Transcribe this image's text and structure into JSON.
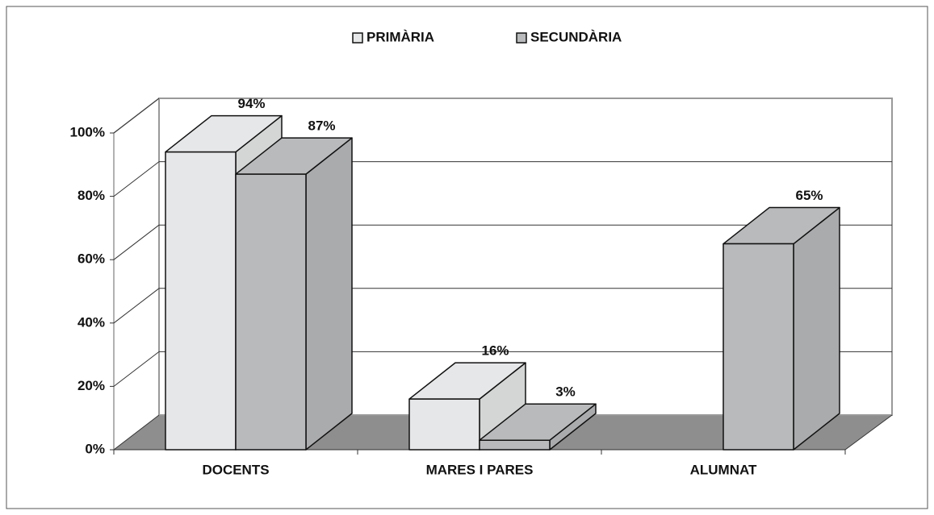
{
  "chart_data": {
    "type": "bar3d",
    "categories": [
      "DOCENTS",
      "MARES I PARES",
      "ALUMNAT"
    ],
    "series": [
      {
        "name": "PRIMÀRIA",
        "color": "#e6e7e8",
        "values": [
          94,
          16,
          null
        ],
        "value_labels": [
          "94%",
          "16%",
          null
        ]
      },
      {
        "name": "SECUNDÀRIA",
        "color": "#b9babc",
        "values": [
          87,
          3,
          65
        ],
        "value_labels": [
          "87%",
          "3%",
          "65%"
        ]
      }
    ],
    "ylim": [
      0,
      100
    ],
    "yticks": [
      {
        "value": 0,
        "label": "0%"
      },
      {
        "value": 20,
        "label": "20%"
      },
      {
        "value": 40,
        "label": "40%"
      },
      {
        "value": 60,
        "label": "60%"
      },
      {
        "value": 80,
        "label": "80%"
      },
      {
        "value": 100,
        "label": "100%"
      }
    ],
    "grid": true,
    "legend": "top"
  }
}
